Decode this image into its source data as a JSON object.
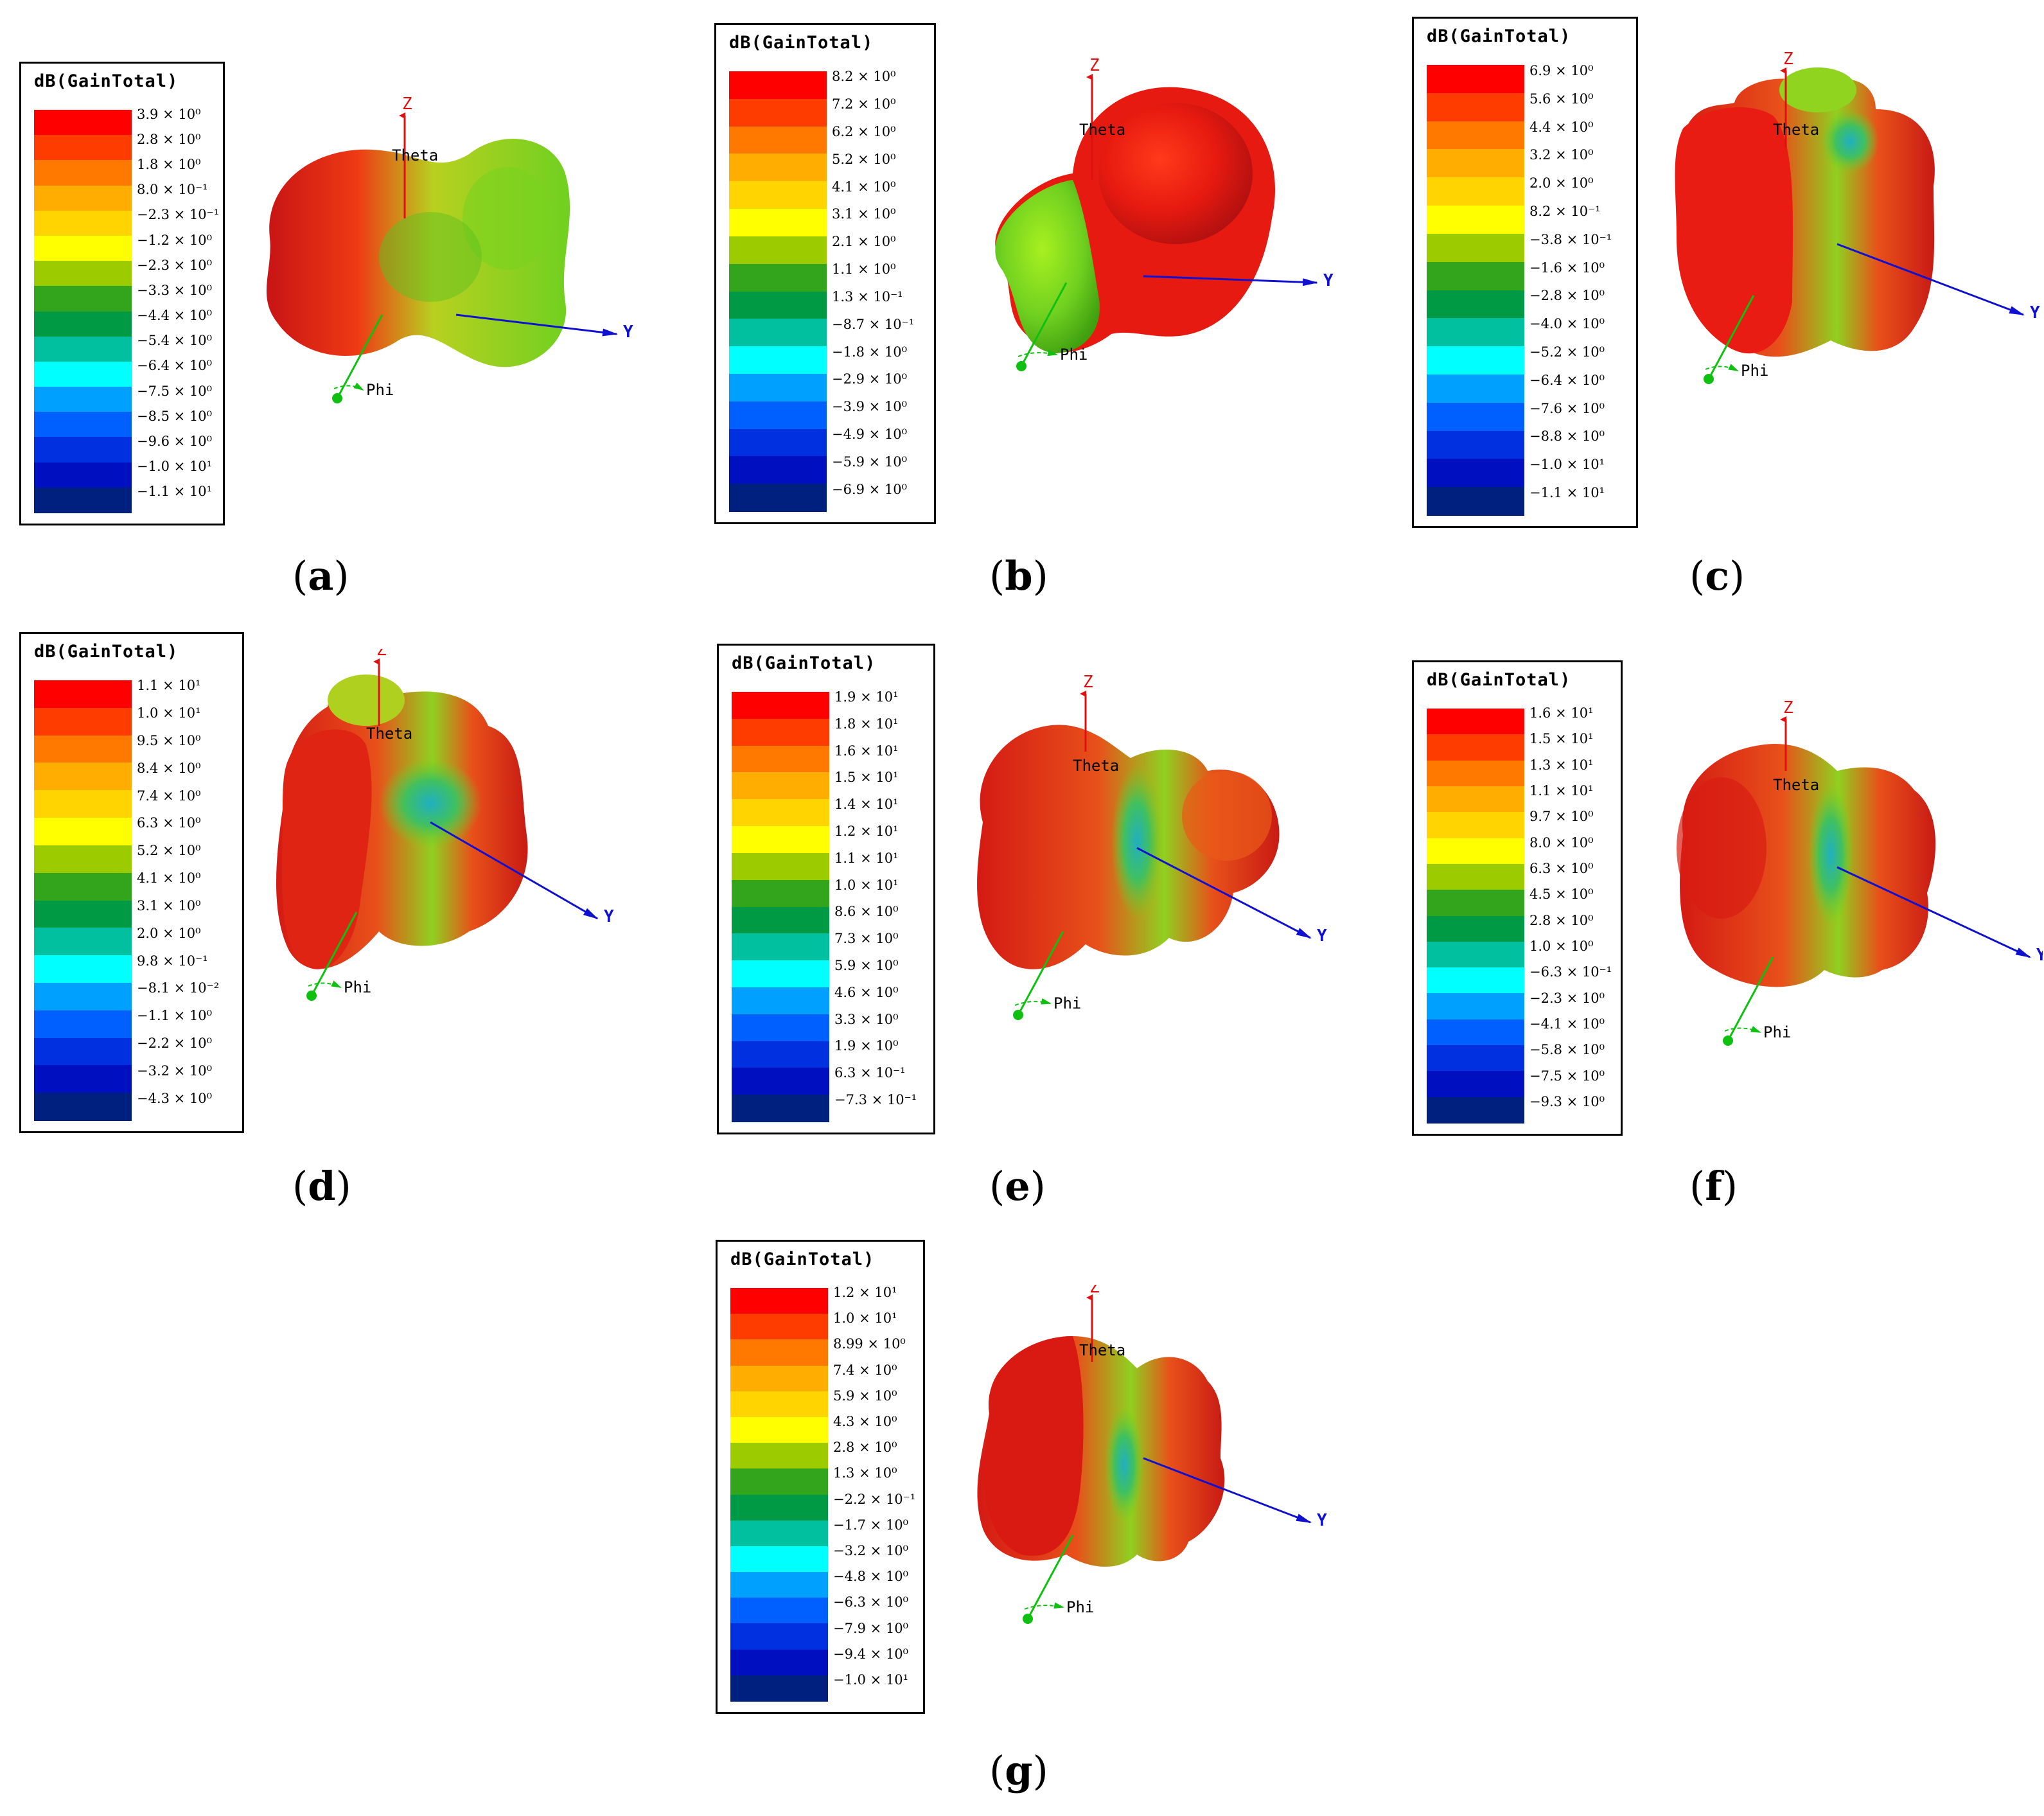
{
  "legend_title": "dB(GainTotal)",
  "axes": {
    "z": "Z",
    "y": "Y",
    "theta": "Theta",
    "phi": "Phi"
  },
  "colors": {
    "scale": [
      "#ff0000",
      "#ff3c00",
      "#ff7800",
      "#ffad00",
      "#ffd400",
      "#ffff00",
      "#9ccc00",
      "#33a51d",
      "#009944",
      "#00c0a0",
      "#00ffff",
      "#00a0ff",
      "#0060ff",
      "#0030e0",
      "#0010c0",
      "#002080"
    ]
  },
  "panels": [
    {
      "id": "a",
      "caption": "a",
      "ticks": [
        "3.9 × 10⁰",
        "2.8 × 10⁰",
        "1.8 × 10⁰",
        "8.0 × 10⁻¹",
        "−2.3 × 10⁻¹",
        "−1.2 × 10⁰",
        "−2.3 × 10⁰",
        "−3.3 × 10⁰",
        "−4.4 × 10⁰",
        "−5.4 × 10⁰",
        "−6.4 × 10⁰",
        "−7.5 × 10⁰",
        "−8.5 × 10⁰",
        "−9.6 × 10⁰",
        "−1.0 × 10¹",
        "−1.1 × 10¹"
      ]
    },
    {
      "id": "b",
      "caption": "b",
      "ticks": [
        "8.2 × 10⁰",
        "7.2 × 10⁰",
        "6.2 × 10⁰",
        "5.2 × 10⁰",
        "4.1 × 10⁰",
        "3.1 × 10⁰",
        "2.1 × 10⁰",
        "1.1 × 10⁰",
        "1.3 × 10⁻¹",
        "−8.7 × 10⁻¹",
        "−1.8 × 10⁰",
        "−2.9 × 10⁰",
        "−3.9 × 10⁰",
        "−4.9 × 10⁰",
        "−5.9 × 10⁰",
        "−6.9 × 10⁰"
      ]
    },
    {
      "id": "c",
      "caption": "c",
      "ticks": [
        "6.9 × 10⁰",
        "5.6 × 10⁰",
        "4.4 × 10⁰",
        "3.2 × 10⁰",
        "2.0 × 10⁰",
        "8.2 × 10⁻¹",
        "−3.8 × 10⁻¹",
        "−1.6 × 10⁰",
        "−2.8 × 10⁰",
        "−4.0 × 10⁰",
        "−5.2 × 10⁰",
        "−6.4 × 10⁰",
        "−7.6 × 10⁰",
        "−8.8 × 10⁰",
        "−1.0 × 10¹",
        "−1.1 × 10¹"
      ]
    },
    {
      "id": "d",
      "caption": "d",
      "ticks": [
        "1.1 × 10¹",
        "1.0 × 10¹",
        "9.5 × 10⁰",
        "8.4 × 10⁰",
        "7.4 × 10⁰",
        "6.3 × 10⁰",
        "5.2 × 10⁰",
        "4.1 × 10⁰",
        "3.1 × 10⁰",
        "2.0 × 10⁰",
        "9.8 × 10⁻¹",
        "−8.1 × 10⁻²",
        "−1.1 × 10⁰",
        "−2.2 × 10⁰",
        "−3.2 × 10⁰",
        "−4.3 × 10⁰"
      ]
    },
    {
      "id": "e",
      "caption": "e",
      "ticks": [
        "1.9 × 10¹",
        "1.8 × 10¹",
        "1.6 × 10¹",
        "1.5 × 10¹",
        "1.4 × 10¹",
        "1.2 × 10¹",
        "1.1 × 10¹",
        "1.0 × 10¹",
        "8.6 × 10⁰",
        "7.3 × 10⁰",
        "5.9 × 10⁰",
        "4.6 × 10⁰",
        "3.3 × 10⁰",
        "1.9 × 10⁰",
        "6.3 × 10⁻¹",
        "−7.3 × 10⁻¹"
      ]
    },
    {
      "id": "f",
      "caption": "f",
      "ticks": [
        "1.6 × 10¹",
        "1.5 × 10¹",
        "1.3 × 10¹",
        "1.1 × 10¹",
        "9.7 × 10⁰",
        "8.0 × 10⁰",
        "6.3 × 10⁰",
        "4.5 × 10⁰",
        "2.8 × 10⁰",
        "1.0 × 10⁰",
        "−6.3 × 10⁻¹",
        "−2.3 × 10⁰",
        "−4.1 × 10⁰",
        "−5.8 × 10⁰",
        "−7.5 × 10⁰",
        "−9.3 × 10⁰"
      ]
    },
    {
      "id": "g",
      "caption": "g",
      "ticks": [
        "1.2 × 10¹",
        "1.0 × 10¹",
        "8.99 × 10⁰",
        "7.4 × 10⁰",
        "5.9 × 10⁰",
        "4.3 × 10⁰",
        "2.8 × 10⁰",
        "1.3 × 10⁰",
        "−2.2 × 10⁻¹",
        "−1.7 × 10⁰",
        "−3.2 × 10⁰",
        "−4.8 × 10⁰",
        "−6.3 × 10⁰",
        "−7.9 × 10⁰",
        "−9.4 × 10⁰",
        "−1.0 × 10¹"
      ]
    }
  ]
}
